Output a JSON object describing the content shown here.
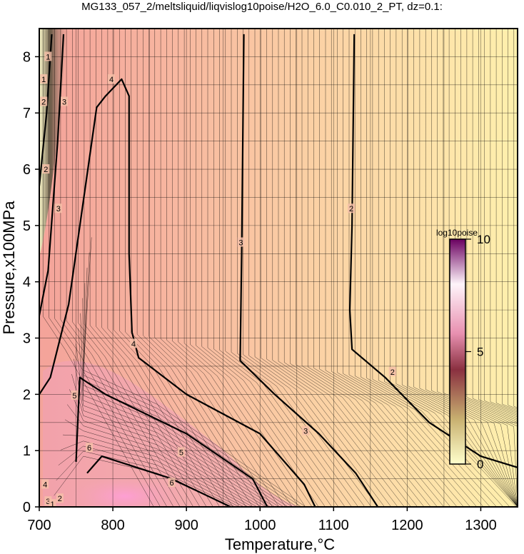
{
  "chart_data": {
    "type": "heatmap",
    "title": "MG133_057_2/meltsliquid/liqvislog10poise/H2O_6.0_C0.010_2_PT, dz=0.1:",
    "xlabel": "Temperature,°C",
    "ylabel": "Pressure,x100MPa",
    "xlim": [
      700,
      1350
    ],
    "ylim": [
      0,
      8.5
    ],
    "xticks": [
      700,
      800,
      900,
      1000,
      1100,
      1200,
      1300
    ],
    "yticks": [
      0,
      1,
      2,
      3,
      4,
      5,
      6,
      7,
      8
    ],
    "grid": true,
    "colorbar": {
      "title": "log10poise",
      "range": [
        0,
        10
      ],
      "ticks": [
        0,
        5,
        10
      ],
      "colors": [
        "#ffffcc",
        "#c8a070",
        "#8a2040",
        "#ffb0e0",
        "#ffffff",
        "#6a0060"
      ]
    },
    "contour_interval": 0.1,
    "labeled_contours": [
      {
        "value": 2,
        "points": [
          [
            1128,
            8.4
          ],
          [
            1125,
            5.0
          ],
          [
            1122,
            3.5
          ],
          [
            1125,
            2.8
          ],
          [
            1170,
            2.3
          ],
          [
            1230,
            1.5
          ],
          [
            1300,
            0.9
          ],
          [
            1350,
            0.7
          ]
        ]
      },
      {
        "value": 3,
        "points": [
          [
            978,
            8.4
          ],
          [
            975,
            4.5
          ],
          [
            973,
            2.6
          ],
          [
            1020,
            2.0
          ],
          [
            1080,
            1.3
          ],
          [
            1130,
            0.6
          ],
          [
            1160,
            0.0
          ]
        ]
      },
      {
        "value": 4,
        "points": [
          [
            826,
            3.1
          ],
          [
            822,
            4.5
          ],
          [
            822,
            7.3
          ],
          [
            812,
            7.6
          ],
          [
            790,
            7.3
          ],
          [
            778,
            7.1
          ],
          [
            740,
            3.6
          ],
          [
            715,
            2.3
          ],
          [
            700,
            2.0
          ]
        ]
      },
      {
        "value": 4,
        "points": [
          [
            826,
            3.1
          ],
          [
            835,
            2.65
          ],
          [
            900,
            2.0
          ],
          [
            1000,
            1.3
          ],
          [
            1060,
            0.4
          ],
          [
            1075,
            0.0
          ]
        ]
      },
      {
        "value": 5,
        "points": [
          [
            750,
            0.8
          ],
          [
            755,
            2.3
          ],
          [
            790,
            2.0
          ],
          [
            900,
            1.3
          ],
          [
            990,
            0.5
          ],
          [
            1010,
            0.0
          ]
        ]
      },
      {
        "value": 6,
        "points": [
          [
            765,
            0.6
          ],
          [
            785,
            0.9
          ],
          [
            880,
            0.5
          ],
          [
            960,
            0.0
          ]
        ]
      },
      {
        "value": 3,
        "points": [
          [
            733,
            8.4
          ],
          [
            725,
            6.5
          ],
          [
            712,
            4.2
          ],
          [
            700,
            3.4
          ]
        ]
      },
      {
        "value": 2,
        "points": [
          [
            717,
            8.4
          ],
          [
            710,
            7.0
          ],
          [
            700,
            5.7
          ]
        ]
      }
    ],
    "contour_labels": [
      {
        "text": "2",
        "x": 1124,
        "y": 5.3
      },
      {
        "text": "2",
        "x": 1180,
        "y": 2.4
      },
      {
        "text": "3",
        "x": 974,
        "y": 4.7
      },
      {
        "text": "3",
        "x": 1062,
        "y": 1.35
      },
      {
        "text": "4",
        "x": 798,
        "y": 7.6
      },
      {
        "text": "4",
        "x": 828,
        "y": 2.9
      },
      {
        "text": "5",
        "x": 748,
        "y": 1.98
      },
      {
        "text": "5",
        "x": 893,
        "y": 0.97
      },
      {
        "text": "6",
        "x": 768,
        "y": 1.05
      },
      {
        "text": "6",
        "x": 880,
        "y": 0.43
      },
      {
        "text": "3",
        "x": 734,
        "y": 7.2
      },
      {
        "text": "3",
        "x": 726,
        "y": 5.3
      },
      {
        "text": "2",
        "x": 709,
        "y": 6.0
      },
      {
        "text": "2",
        "x": 706,
        "y": 7.2
      },
      {
        "text": "1",
        "x": 712,
        "y": 8.0
      },
      {
        "text": "1",
        "x": 706,
        "y": 7.6
      },
      {
        "text": "4",
        "x": 708,
        "y": 0.4
      },
      {
        "text": "3",
        "x": 712,
        "y": 0.1
      },
      {
        "text": "1",
        "x": 718,
        "y": 0.05
      },
      {
        "text": "2",
        "x": 728,
        "y": 0.15
      }
    ]
  }
}
